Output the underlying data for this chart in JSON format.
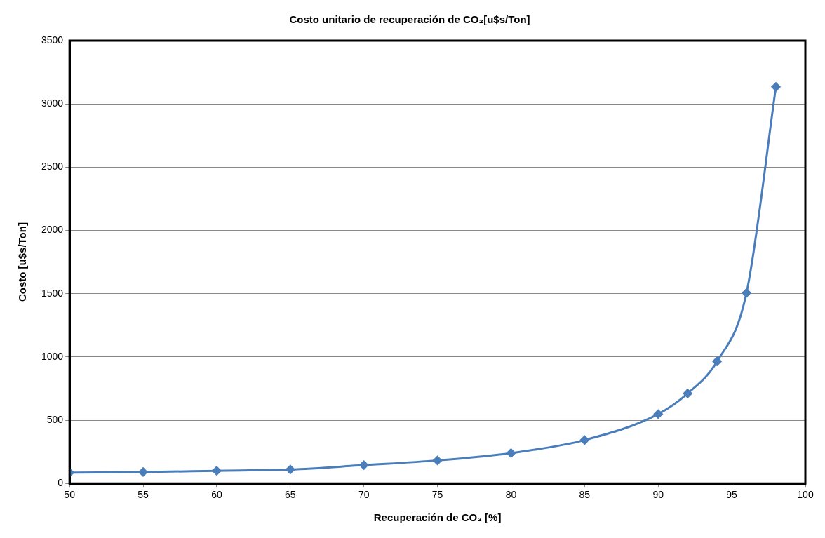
{
  "chart_data": {
    "type": "line",
    "title": "Costo unitario de recuperación de CO₂[u$s/Ton]",
    "xlabel": "Recuperación de CO₂ [%]",
    "ylabel": "Costo [u$s/Ton]",
    "x": [
      50,
      55,
      60,
      65,
      70,
      75,
      80,
      85,
      90,
      92,
      94,
      96,
      98
    ],
    "series": [
      {
        "color": "#4a7ebb",
        "values": [
          85,
          90,
          100,
          110,
          145,
          182,
          240,
          343,
          548,
          711,
          965,
          1506,
          3135
        ]
      }
    ],
    "xlim": [
      50,
      100
    ],
    "xticks": [
      50,
      55,
      60,
      65,
      70,
      75,
      80,
      85,
      90,
      95,
      100
    ],
    "ylim": [
      0,
      3500
    ],
    "yticks": [
      0,
      500,
      1000,
      1500,
      2000,
      2500,
      3000,
      3500
    ],
    "grid": "y",
    "legend": false,
    "marker": "diamond",
    "line_style": "solid"
  }
}
